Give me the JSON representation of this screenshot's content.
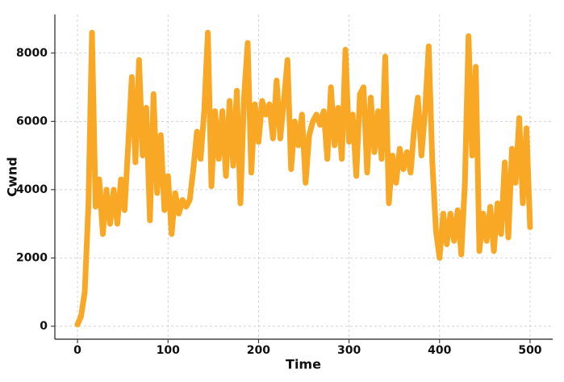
{
  "chart_data": {
    "type": "line",
    "x_label": "Time",
    "y_label": "Cwnd",
    "x": [
      0,
      4,
      8,
      12,
      16,
      20,
      24,
      28,
      32,
      36,
      40,
      44,
      48,
      52,
      56,
      60,
      64,
      68,
      72,
      76,
      80,
      84,
      88,
      92,
      96,
      100,
      104,
      108,
      112,
      116,
      120,
      124,
      128,
      132,
      136,
      140,
      144,
      148,
      152,
      156,
      160,
      164,
      168,
      172,
      176,
      180,
      184,
      188,
      192,
      196,
      200,
      204,
      208,
      212,
      216,
      220,
      224,
      228,
      232,
      236,
      240,
      244,
      248,
      252,
      256,
      260,
      264,
      268,
      272,
      276,
      280,
      284,
      288,
      292,
      296,
      300,
      304,
      308,
      312,
      316,
      320,
      324,
      328,
      332,
      336,
      340,
      344,
      348,
      352,
      356,
      360,
      364,
      368,
      372,
      376,
      380,
      384,
      388,
      392,
      396,
      400,
      404,
      408,
      412,
      416,
      420,
      424,
      428,
      432,
      436,
      440,
      444,
      448,
      452,
      456,
      460,
      464,
      468,
      472,
      476,
      480,
      484,
      488,
      492,
      496,
      500
    ],
    "series": [
      {
        "name": "Cwnd",
        "color": "#f9a825",
        "values": [
          50,
          300,
          1000,
          3500,
          8600,
          3500,
          4300,
          2700,
          4000,
          3000,
          4000,
          3000,
          4300,
          3400,
          5300,
          7300,
          4800,
          7800,
          5000,
          6400,
          3100,
          6800,
          3900,
          5600,
          3400,
          4400,
          2700,
          3900,
          3300,
          3700,
          3500,
          3700,
          4600,
          5700,
          4900,
          6300,
          8600,
          4100,
          6300,
          4900,
          6300,
          4400,
          6600,
          4700,
          6900,
          3600,
          6700,
          8300,
          4500,
          6500,
          5400,
          6600,
          6200,
          6500,
          5500,
          7200,
          5500,
          6600,
          7800,
          4600,
          6000,
          5300,
          6200,
          4200,
          5600,
          6000,
          6200,
          5900,
          6300,
          4900,
          7000,
          5300,
          6400,
          4900,
          8100,
          5400,
          6200,
          4400,
          6800,
          7000,
          4500,
          6700,
          5100,
          6300,
          4900,
          7900,
          3600,
          5000,
          4200,
          5200,
          4600,
          5100,
          4500,
          5800,
          6700,
          5000,
          6300,
          8200,
          4800,
          2800,
          2000,
          3300,
          2400,
          3300,
          2500,
          3400,
          2100,
          4200,
          8500,
          5000,
          7600,
          2200,
          3300,
          2500,
          3500,
          2200,
          3600,
          2700,
          4800,
          2600,
          5200,
          4200,
          6100,
          3600,
          5800,
          2900
        ]
      }
    ],
    "xlim": [
      -25,
      525
    ],
    "ylim": [
      -380,
      9130
    ],
    "xticks": [
      0,
      100,
      200,
      300,
      400,
      500
    ],
    "yticks": [
      0,
      2000,
      4000,
      6000,
      8000
    ],
    "grid": true
  }
}
